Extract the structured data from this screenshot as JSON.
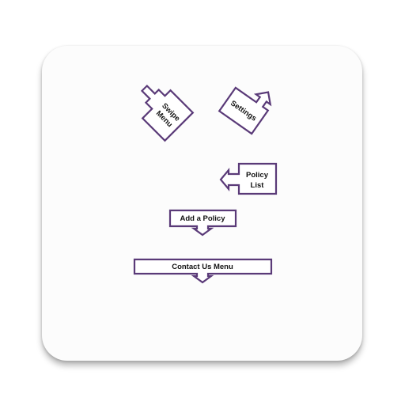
{
  "colors": {
    "accent": "#5a3a78",
    "card_background": "#fcfcfc",
    "text": "#111111"
  },
  "hints": {
    "swipe_menu": {
      "line1": "Swipe",
      "line2": "Menu",
      "arrow": "arrow-up-left-icon"
    },
    "settings": {
      "label": "Settings",
      "arrow": "arrow-up-right-icon"
    },
    "policy_list": {
      "line1": "Policy",
      "line2": "List",
      "arrow": "arrow-left-icon"
    },
    "add_policy": {
      "label": "Add a Policy",
      "arrow": "arrow-down-icon"
    },
    "contact_us_menu": {
      "label": "Contact Us Menu",
      "arrow": "arrow-down-icon"
    }
  }
}
